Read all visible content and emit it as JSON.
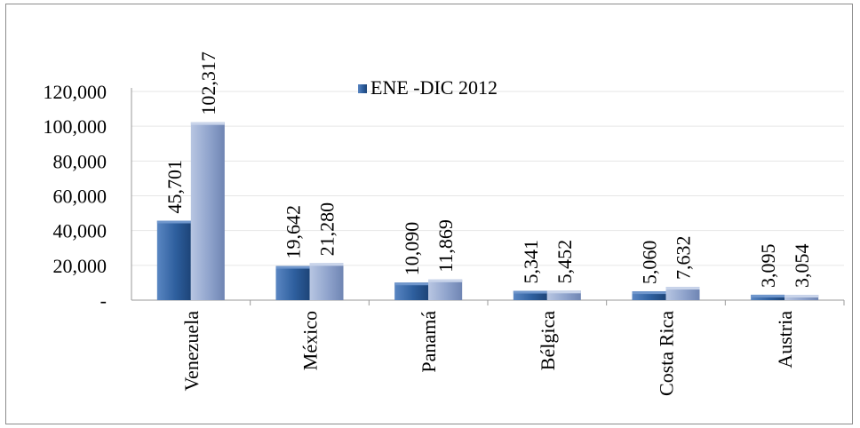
{
  "chart_data": {
    "type": "bar",
    "title": "",
    "xlabel": "",
    "ylabel": "",
    "categories": [
      "Venezuela",
      "México",
      "Panamá",
      "Bélgica",
      "Costa Rica",
      "Austria"
    ],
    "series": [
      {
        "name": "ENE -DIC 2012",
        "color": "#2e5f9e",
        "values": [
          45701,
          19642,
          10090,
          5341,
          5060,
          3095
        ],
        "labels": [
          "45,701",
          "19,642",
          "10,090",
          "5,341",
          "5,060",
          "3,095"
        ]
      },
      {
        "name": "",
        "color": "#8fa3cc",
        "values": [
          102317,
          21280,
          11869,
          5452,
          7632,
          3054
        ],
        "labels": [
          "102,317",
          "21,280",
          "11,869",
          "5,452",
          "7,632",
          "3,054"
        ]
      }
    ],
    "ylim": [
      0,
      120000
    ],
    "yticks": [
      0,
      20000,
      40000,
      60000,
      80000,
      100000,
      120000
    ],
    "ytick_labels": [
      "-",
      "20,000",
      "40,000",
      "60,000",
      "80,000",
      "100,000",
      "120,000"
    ],
    "grid": true,
    "legend": {
      "position": "top-center",
      "entries": [
        "ENE -DIC 2012"
      ]
    }
  }
}
